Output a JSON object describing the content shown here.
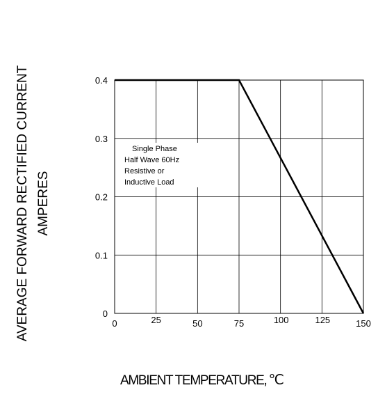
{
  "chart_data": {
    "type": "line",
    "ylabel_line1": "AVERAGE FORWARD RECTIFIED CURRENT",
    "ylabel_line2": "AMPERES",
    "xlabel": "AMBIENT TEMPERATURE,",
    "xlabel_unit": "℃",
    "x_ticks": [
      0,
      25,
      50,
      75,
      100,
      125,
      150
    ],
    "y_ticks": [
      0,
      0.1,
      0.2,
      0.3,
      0.4
    ],
    "xlim": [
      0,
      150
    ],
    "ylim": [
      0,
      0.4
    ],
    "grid": true,
    "series": [
      {
        "x": [
          0,
          75,
          150
        ],
        "y": [
          0.4,
          0.4,
          0
        ],
        "color": "#000000"
      }
    ],
    "annotation": [
      "Single Phase",
      "Half Wave 60Hz",
      "Resistive or",
      "Inductive Load"
    ]
  }
}
